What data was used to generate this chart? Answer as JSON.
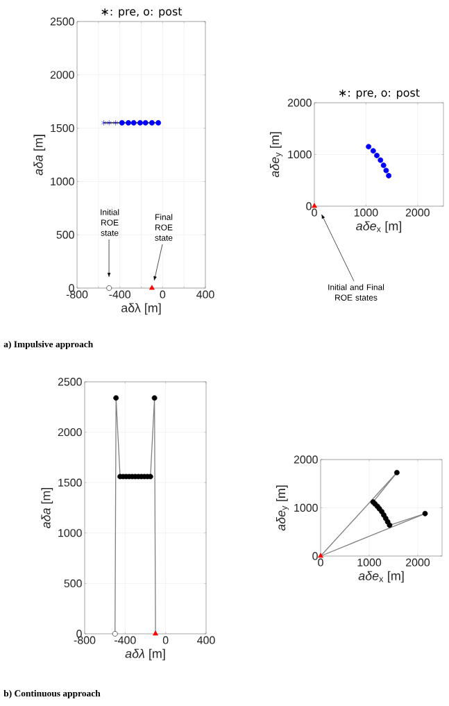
{
  "chart_data": [
    {
      "type": "scatter",
      "title": "∗: pre, o: post",
      "xlabel": "aδλ [m]",
      "ylabel": "*aδa* [m]",
      "xlim": [
        -800,
        400
      ],
      "ylim": [
        0,
        2500
      ],
      "xticks": [
        -800,
        {
          "value": -600,
          "label": null
        },
        -400,
        {
          "value": -200,
          "label": null
        },
        0,
        {
          "value": 200,
          "label": null
        },
        400
      ],
      "yticks": [
        0,
        500,
        1000,
        1500,
        2000,
        2500
      ],
      "grid": true,
      "series": [
        {
          "type": "line",
          "color": "#000000",
          "marker": "none",
          "x": [
            -550,
            -40
          ],
          "values": [
            1550,
            1550
          ]
        },
        {
          "color": "#0000ff",
          "marker": "cross",
          "x": [
            -550,
            -500,
            -440
          ],
          "values": [
            1550,
            1550,
            1550
          ]
        },
        {
          "color": "#0000ff",
          "marker": "circle",
          "x": [
            -380,
            -320,
            -270,
            -210,
            -160,
            -100,
            -40
          ],
          "values": [
            1550,
            1550,
            1550,
            1550,
            1550,
            1550,
            1550
          ]
        },
        {
          "color": "#ffffff",
          "marker": "circle",
          "x": [
            -500
          ],
          "values": [
            0
          ]
        },
        {
          "color": "#ff0000",
          "marker": "triangle",
          "x": [
            -100
          ],
          "values": [
            0
          ]
        }
      ],
      "annotations": [
        "Initial ROE state",
        "Final ROE state",
        "a) Impulsive approach"
      ]
    },
    {
      "type": "scatter",
      "title": "∗: pre, o: post",
      "xlabel": "*aδe*$_{x}$ [m]",
      "ylabel": "*aδe*$_{y}$ [m]",
      "xlim": [
        0,
        2500
      ],
      "ylim": [
        0,
        2000
      ],
      "xticks": [
        0,
        1000,
        2000
      ],
      "yticks": [
        0,
        1000,
        2000
      ],
      "grid": true,
      "series": [
        {
          "color": "#0000ff",
          "marker": "circle",
          "x": [
            1050,
            1140,
            1210,
            1280,
            1340,
            1390,
            1440
          ],
          "values": [
            1150,
            1070,
            980,
            890,
            790,
            690,
            590
          ]
        },
        {
          "color": "#0000ff",
          "marker": "cross",
          "x": [
            1050,
            1140,
            1210,
            1280,
            1340,
            1390,
            1440
          ],
          "values": [
            1150,
            1070,
            980,
            890,
            790,
            690,
            590
          ]
        },
        {
          "color": "#ff0000",
          "marker": "triangle",
          "x": [
            0
          ],
          "values": [
            0
          ]
        }
      ],
      "annotations": [
        "Initial and Final ROE states"
      ]
    },
    {
      "type": "scatter",
      "xlabel": "*aδλ* [m]",
      "ylabel": "*aδa* [m]",
      "xlim": [
        -800,
        400
      ],
      "ylim": [
        0,
        2500
      ],
      "xticks": [
        -800,
        -400,
        0,
        400
      ],
      "yticks": [
        0,
        500,
        1000,
        1500,
        2000,
        2500
      ],
      "grid": true,
      "series": [
        {
          "type": "line",
          "color": "#808080",
          "marker": "none",
          "x": [
            -500,
            -490,
            -450,
            -150,
            -110,
            -100
          ],
          "values": [
            0,
            2340,
            1560,
            1560,
            2340,
            0
          ]
        },
        {
          "color": "#000000",
          "marker": "circle",
          "x": [
            -490,
            -450,
            -420,
            -390,
            -360,
            -330,
            -300,
            -270,
            -240,
            -210,
            -180,
            -150,
            -110
          ],
          "values": [
            2340,
            1560,
            1560,
            1560,
            1560,
            1560,
            1560,
            1560,
            1560,
            1560,
            1560,
            1560,
            2340
          ]
        },
        {
          "color": "#ffffff",
          "marker": "circle",
          "x": [
            -500
          ],
          "values": [
            0
          ]
        },
        {
          "color": "#ff0000",
          "marker": "triangle",
          "x": [
            -100
          ],
          "values": [
            0
          ]
        }
      ],
      "annotations": [
        "b) Continuous approach"
      ]
    },
    {
      "type": "scatter",
      "xlabel": "*aδe*$_{x}$ [m]",
      "ylabel": "*aδe*$_{y}$ [m]",
      "xlim": [
        0,
        2500
      ],
      "ylim": [
        0,
        2000
      ],
      "xticks": [
        0,
        1000,
        2000
      ],
      "yticks": [
        0,
        1000,
        2000
      ],
      "grid": true,
      "series": [
        {
          "type": "line",
          "color": "#808080",
          "marker": "none",
          "x": [
            0,
            1570
          ],
          "values": [
            0,
            1730
          ]
        },
        {
          "type": "line",
          "color": "#808080",
          "marker": "none",
          "x": [
            1080,
            1570
          ],
          "values": [
            1120,
            1730
          ]
        },
        {
          "type": "line",
          "color": "#808080",
          "marker": "none",
          "x": [
            1420,
            2150
          ],
          "values": [
            640,
            880
          ]
        },
        {
          "type": "line",
          "color": "#808080",
          "marker": "none",
          "x": [
            0,
            2150
          ],
          "values": [
            0,
            880
          ]
        },
        {
          "color": "#000000",
          "marker": "circle",
          "x": [
            1080,
            1120,
            1170,
            1210,
            1260,
            1300,
            1340,
            1380,
            1420,
            1570,
            2150
          ],
          "values": [
            1120,
            1080,
            1030,
            980,
            920,
            850,
            780,
            710,
            640,
            1730,
            880
          ]
        },
        {
          "color": "#ff0000",
          "marker": "triangle",
          "x": [
            0
          ],
          "values": [
            0
          ]
        }
      ]
    }
  ]
}
